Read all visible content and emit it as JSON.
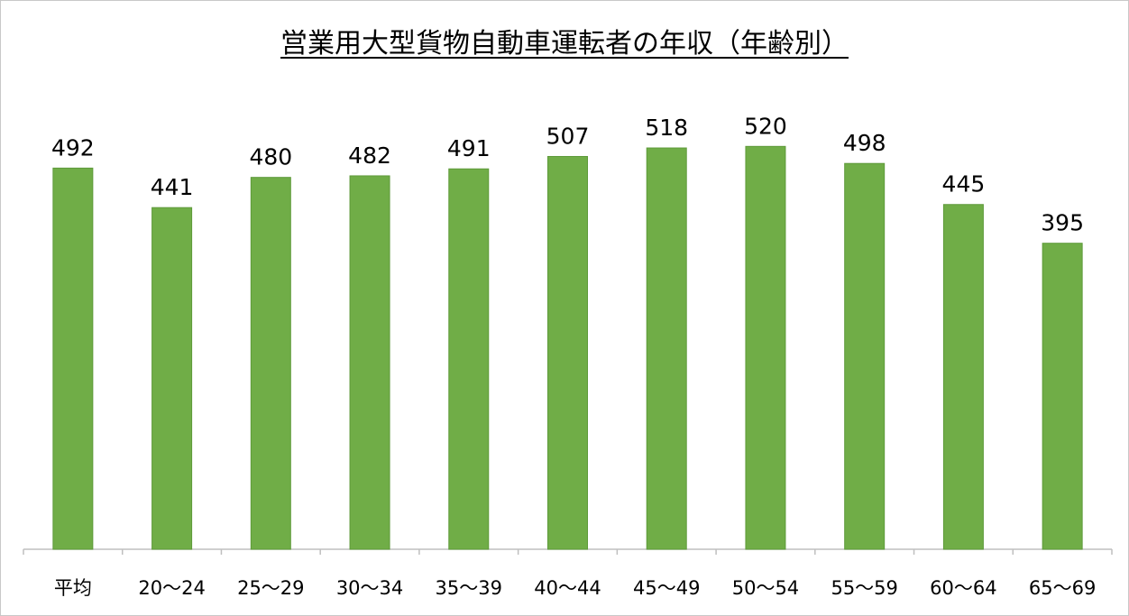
{
  "chart_data": {
    "type": "bar",
    "title": "営業用大型貨物自動車運転者の年収（年齢別）",
    "categories": [
      "平均",
      "20～24",
      "25～29",
      "30～34",
      "35～39",
      "40～44",
      "45～49",
      "50～54",
      "55～59",
      "60～64",
      "65～69"
    ],
    "values": [
      492,
      441,
      480,
      482,
      491,
      507,
      518,
      520,
      498,
      445,
      395
    ],
    "xlabel": "",
    "ylabel": "",
    "ylim": [
      0,
      600
    ],
    "grid": false,
    "legend": "none",
    "colors": {
      "bar": "#70ad47",
      "bar_edge": "#5e9a3a",
      "axis": "#bfbfbf"
    }
  }
}
